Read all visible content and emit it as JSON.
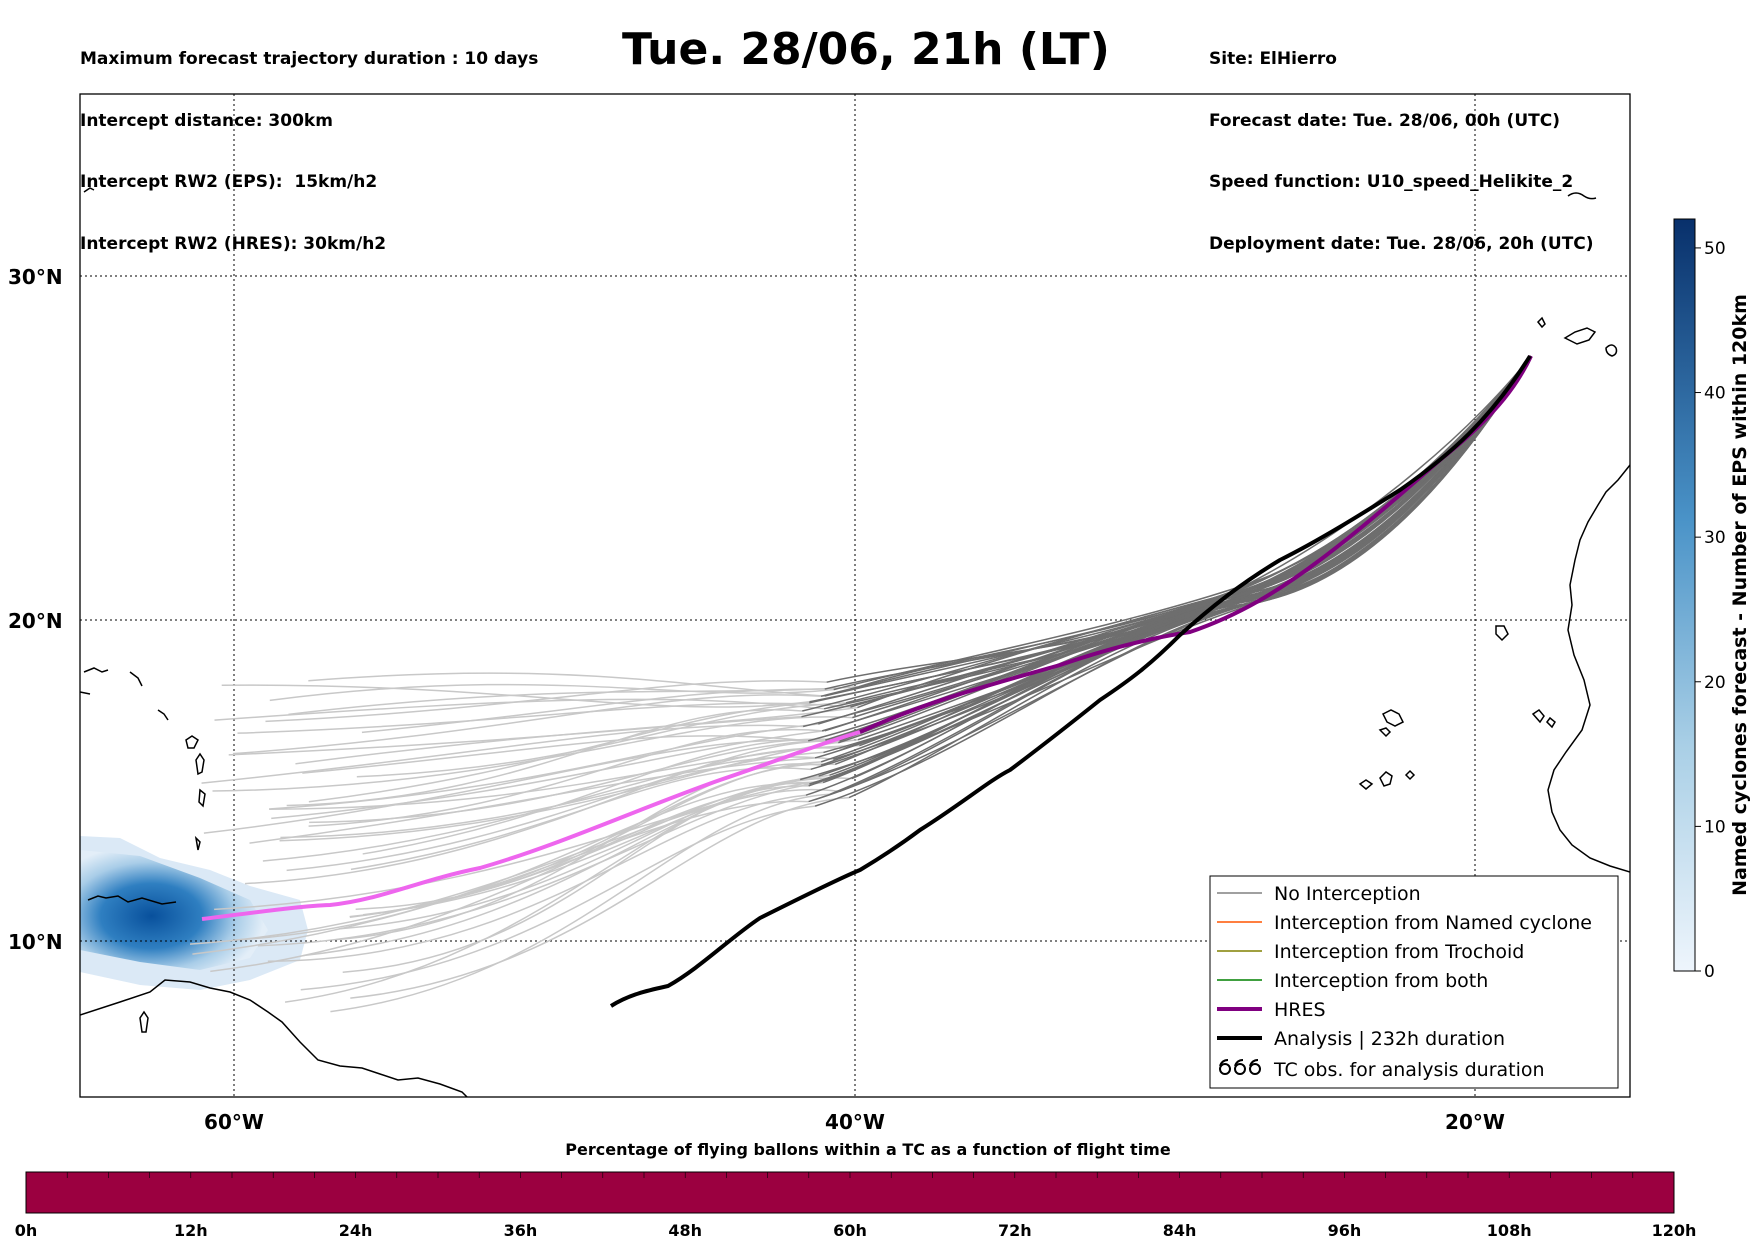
{
  "header_left": [
    "Maximum forecast trajectory duration : 10 days",
    "Intercept distance: 300km",
    "Intercept RW2 (EPS):  15km/h2",
    "Intercept RW2 (HRES): 30km/h2"
  ],
  "title": "Tue. 28/06, 21h (LT)",
  "header_right": [
    "Site: ElHierro",
    "Forecast date: Tue. 28/06, 00h (UTC)",
    "Speed function: U10_speed_Helikite_2",
    "Deployment date: Tue. 28/06, 20h (UTC)"
  ],
  "map": {
    "lat_ticks": [
      "30°N",
      "20°N",
      "10°N"
    ],
    "lon_ticks": [
      "60°W",
      "40°W",
      "20°W"
    ]
  },
  "legend": {
    "items": [
      {
        "label": "No Interception",
        "color": "#808080",
        "style": "line-thin"
      },
      {
        "label": "Interception from Named cyclone",
        "color": "#ff5500",
        "style": "line-thin"
      },
      {
        "label": "Interception from Trochoid",
        "color": "#808000",
        "style": "line-thin"
      },
      {
        "label": "Interception from both",
        "color": "#008000",
        "style": "line-thin"
      },
      {
        "label": "HRES",
        "color": "#800080",
        "style": "line-thick"
      },
      {
        "label": "Analysis | 232h duration",
        "color": "#000000",
        "style": "line-thick"
      },
      {
        "label": "TC obs. for analysis duration",
        "color": "#000000",
        "style": "cyclone-icon"
      }
    ]
  },
  "colorbar": {
    "label": "Named cyclones forecast - Number of EPS within 120km",
    "ticks": [
      "0",
      "10",
      "20",
      "30",
      "40",
      "50"
    ],
    "color_low": "#e9f2fb",
    "color_high": "#08306b"
  },
  "bottom_bar": {
    "title": "Percentage of flying ballons within a TC as a function of flight time",
    "color": "#9b0040",
    "ticks": [
      "0h",
      "12h",
      "24h",
      "36h",
      "48h",
      "60h",
      "72h",
      "84h",
      "96h",
      "108h",
      "120h"
    ]
  },
  "colors": {
    "ensemble_light": "#c8c8c8",
    "ensemble_dark": "#6e6e6e",
    "hres_early": "#ee66ee",
    "hres_late": "#800080",
    "analysis": "#000000"
  }
}
